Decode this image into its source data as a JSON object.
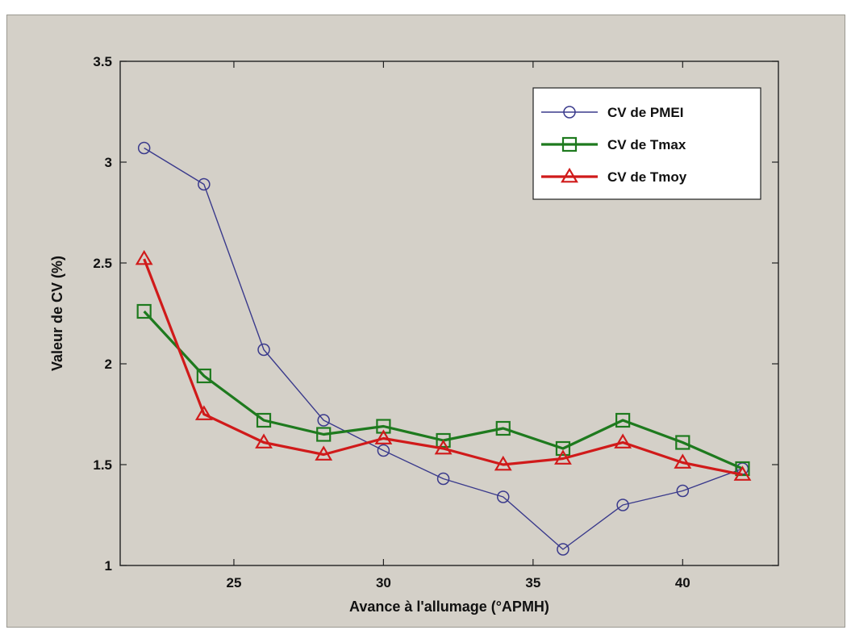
{
  "chart_data": {
    "type": "line",
    "xlabel": "Avance à l'allumage (°APMH)",
    "ylabel": "Valeur de CV (%)",
    "xlim": [
      21.2,
      43.2
    ],
    "ylim": [
      1,
      3.5
    ],
    "xticks": [
      25,
      30,
      35,
      40
    ],
    "yticks": [
      1,
      1.5,
      2,
      2.5,
      3,
      3.5
    ],
    "ytick_labels": [
      "1",
      "1.5",
      "2",
      "2.5",
      "3",
      "3.5"
    ],
    "grid": false,
    "legend_position": "top-right",
    "x": [
      22,
      24,
      26,
      28,
      30,
      32,
      34,
      36,
      38,
      40,
      42
    ],
    "series": [
      {
        "name": "CV de PMEI",
        "marker": "circle",
        "color": "#3a3a8c",
        "values": [
          3.07,
          2.89,
          2.07,
          1.72,
          1.57,
          1.43,
          1.34,
          1.08,
          1.3,
          1.37,
          1.48
        ]
      },
      {
        "name": "CV de Tmax",
        "marker": "square",
        "color": "#1e7a1e",
        "values": [
          2.26,
          1.94,
          1.72,
          1.65,
          1.69,
          1.62,
          1.68,
          1.58,
          1.72,
          1.61,
          1.48
        ]
      },
      {
        "name": "CV de Tmoy",
        "marker": "triangle",
        "color": "#d01a1a",
        "values": [
          2.52,
          1.75,
          1.61,
          1.55,
          1.63,
          1.58,
          1.5,
          1.53,
          1.61,
          1.51,
          1.45
        ]
      }
    ]
  }
}
